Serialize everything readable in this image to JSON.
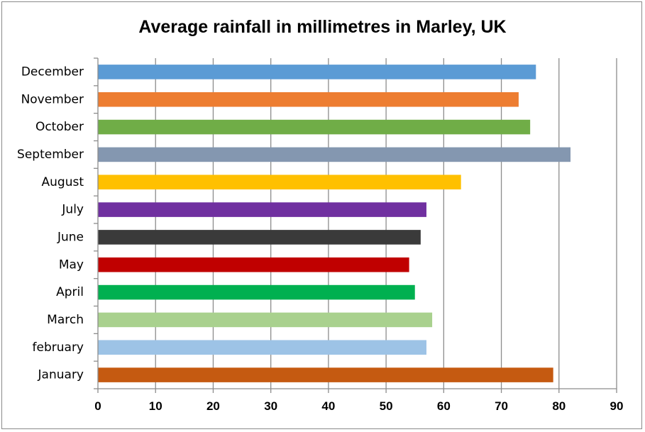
{
  "chart_data": {
    "type": "bar",
    "orientation": "horizontal",
    "title": "Average rainfall in millimetres in Marley, UK",
    "categories": [
      "January",
      "february",
      "March",
      "April",
      "May",
      "June",
      "July",
      "August",
      "September",
      "October",
      "November",
      "December"
    ],
    "values": [
      79,
      57,
      58,
      55,
      54,
      56,
      57,
      63,
      82,
      75,
      73,
      76
    ],
    "colors": [
      "#c55a11",
      "#9dc3e6",
      "#a9d18e",
      "#00b050",
      "#c00000",
      "#3a3a3a",
      "#7030a0",
      "#ffc000",
      "#8497b0",
      "#70ad47",
      "#ed7d31",
      "#5b9bd5"
    ],
    "xlim": [
      0,
      90
    ],
    "xticks": [
      0,
      10,
      20,
      30,
      40,
      50,
      60,
      70,
      80,
      90
    ],
    "grid": true,
    "xlabel": "",
    "ylabel": ""
  }
}
